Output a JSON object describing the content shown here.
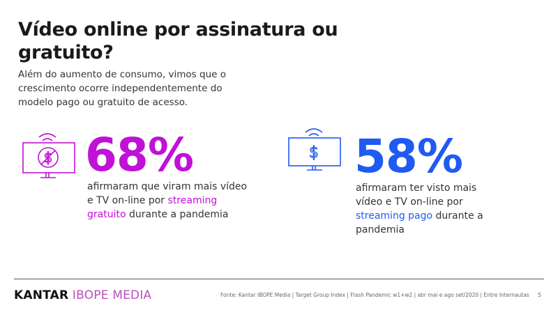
{
  "title": "Vídeo online por assinatura ou gratuito?",
  "subtitle": "Além do aumento de consumo, vimos que o crescimento ocorre independentemente do modelo pago ou gratuito de acesso.",
  "colors": {
    "free": "#c011d6",
    "paid": "#1f5af2"
  },
  "stats": [
    {
      "icon": "tv-no-dollar-icon",
      "value": "68%",
      "text_before": "afirmaram que viram mais vídeo e TV on-line por ",
      "highlight": "streaming gratuito",
      "text_after": " durante a pandemia"
    },
    {
      "icon": "tv-dollar-icon",
      "value": "58%",
      "text_before": "afirmaram ter visto mais vídeo e TV on-line por ",
      "highlight": "streaming pago",
      "text_after": " durante a pandemia"
    }
  ],
  "footer": {
    "logo_kantar": "KANTAR",
    "logo_ibope": "IBOPE MEDIA",
    "source": "Fonte: Kantar IBOPE Media | Target Group Index | Flash Pandemic w1+w2 | abr mai e ago set/2020 | Entre Internautas",
    "page": "5"
  }
}
